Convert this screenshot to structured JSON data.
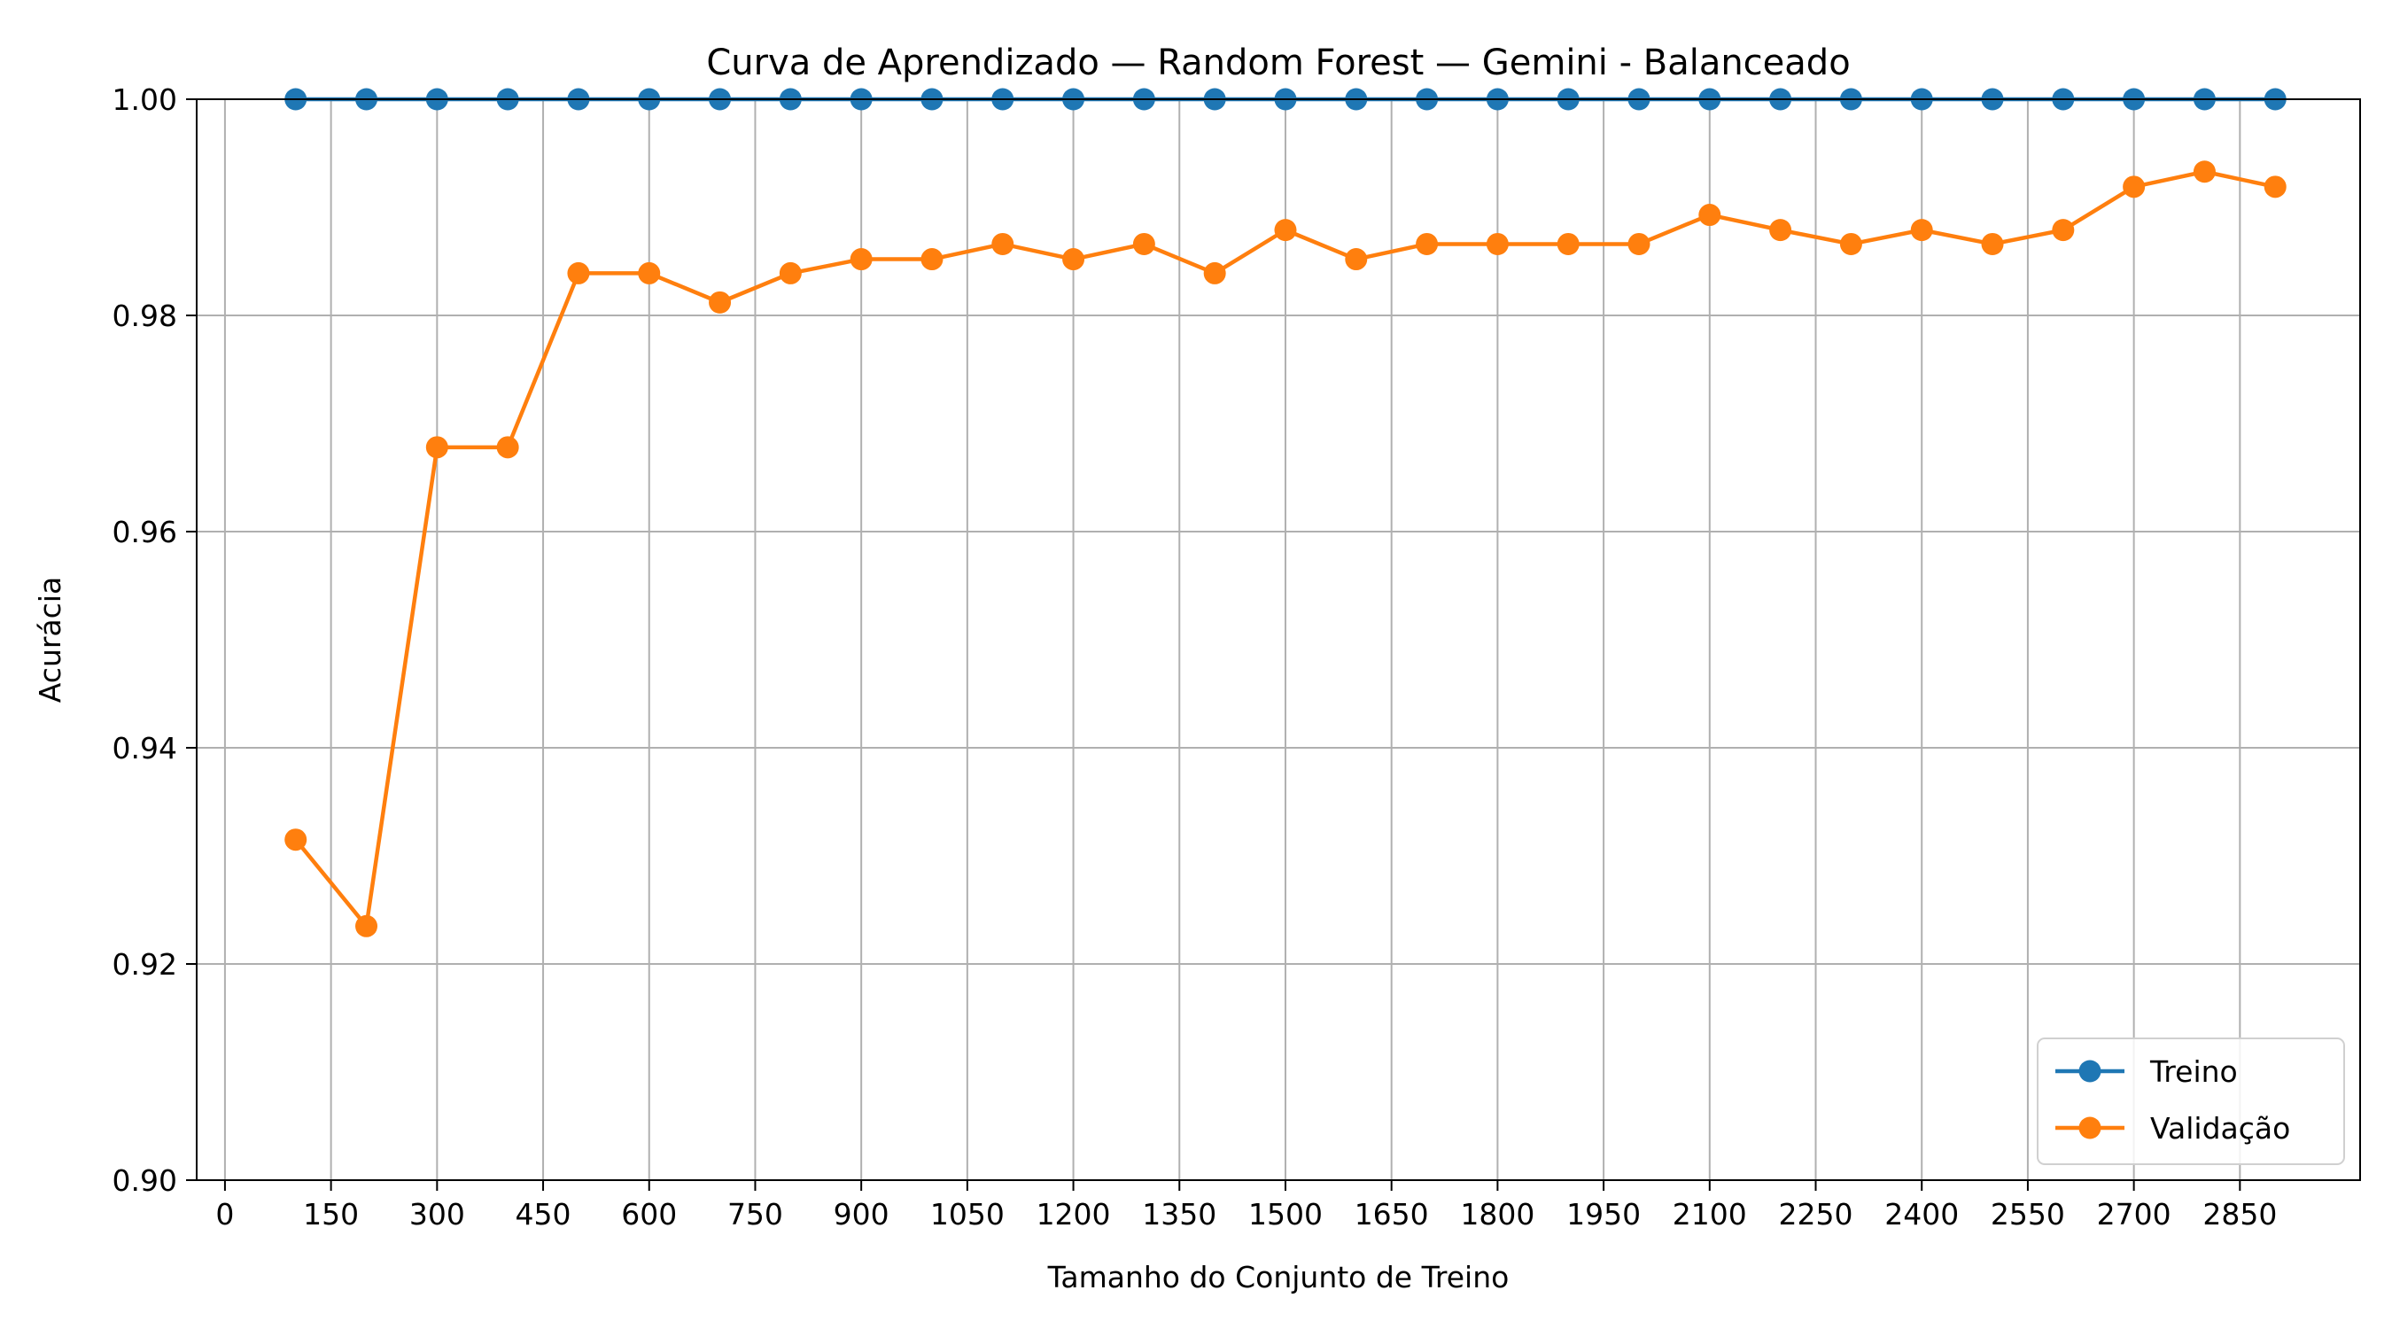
{
  "chart_data": {
    "type": "line",
    "title": "Curva de Aprendizado — Random Forest — Gemini - Balanceado",
    "xlabel": "Tamanho do Conjunto de Treino",
    "ylabel": "Acurácia",
    "xlim": [
      -40,
      3020
    ],
    "ylim": [
      0.9,
      1.0
    ],
    "xticks": [
      0,
      150,
      300,
      450,
      600,
      750,
      900,
      1050,
      1200,
      1350,
      1500,
      1650,
      1800,
      1950,
      2100,
      2250,
      2400,
      2550,
      2700,
      2850
    ],
    "yticks": [
      0.9,
      0.92,
      0.94,
      0.96,
      0.98,
      1.0
    ],
    "ytick_labels": [
      "0.90",
      "0.92",
      "0.94",
      "0.96",
      "0.98",
      "1.00"
    ],
    "grid": true,
    "legend_position": "lower-right",
    "x": [
      100,
      200,
      300,
      400,
      500,
      600,
      700,
      800,
      900,
      1000,
      1100,
      1200,
      1300,
      1400,
      1500,
      1600,
      1700,
      1800,
      1900,
      2000,
      2100,
      2200,
      2300,
      2400,
      2500,
      2600,
      2700,
      2800,
      2900
    ],
    "series": [
      {
        "name": "Treino",
        "color": "#1f77b4",
        "values": [
          1.0,
          1.0,
          1.0,
          1.0,
          1.0,
          1.0,
          1.0,
          1.0,
          1.0,
          1.0,
          1.0,
          1.0,
          1.0,
          1.0,
          1.0,
          1.0,
          1.0,
          1.0,
          1.0,
          1.0,
          1.0,
          1.0,
          1.0,
          1.0,
          1.0,
          1.0,
          1.0,
          1.0,
          1.0
        ]
      },
      {
        "name": "Validação",
        "color": "#ff7f0e",
        "values": [
          0.9315,
          0.9235,
          0.9678,
          0.9678,
          0.9839,
          0.9839,
          0.9812,
          0.9839,
          0.9852,
          0.9852,
          0.9866,
          0.9852,
          0.9866,
          0.9839,
          0.9879,
          0.9852,
          0.9866,
          0.9866,
          0.9866,
          0.9866,
          0.9893,
          0.9879,
          0.9866,
          0.9879,
          0.9866,
          0.9879,
          0.9919,
          0.9933,
          0.9919
        ]
      }
    ]
  }
}
